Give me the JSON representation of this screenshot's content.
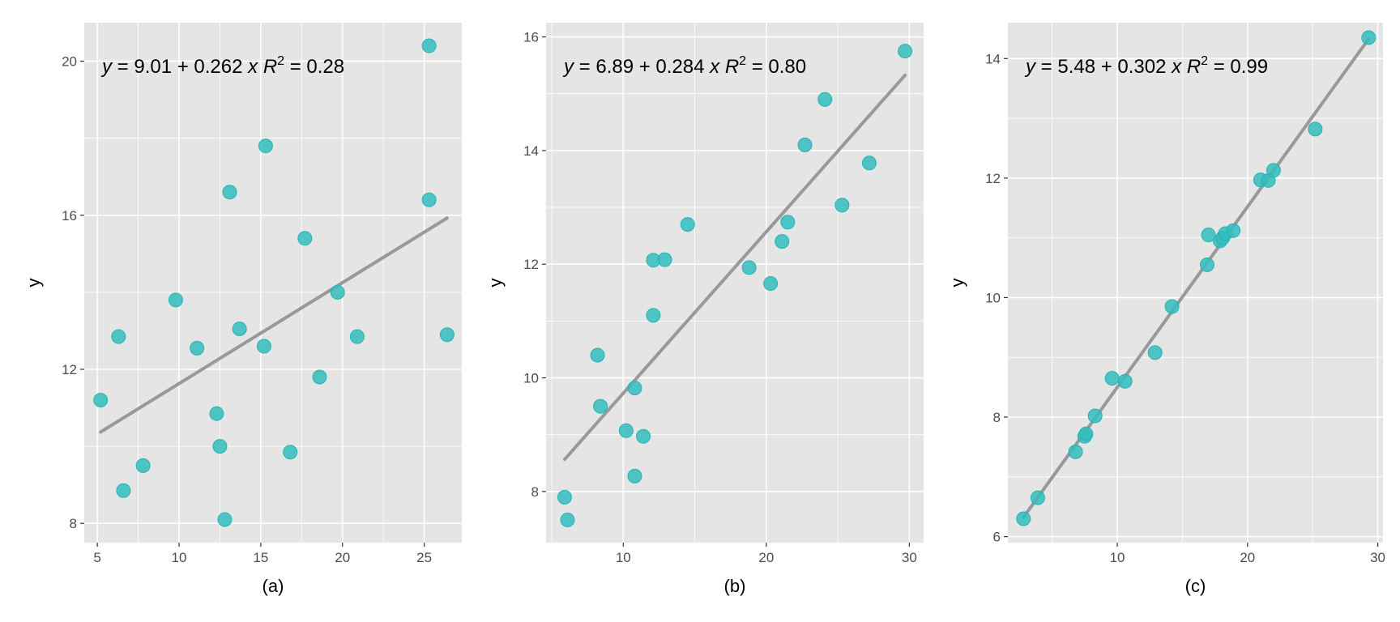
{
  "chart_data": [
    {
      "type": "scatter",
      "title": "",
      "xlabel": "(a)",
      "ylabel": "y",
      "equation": {
        "lhs": "y",
        "body": " = 9.01 + 0.262 ",
        "xvar": "x",
        "rlab": "R",
        "rexp": "2",
        "rval": " = 0.28"
      },
      "xlim": [
        4.2,
        27.3
      ],
      "ylim": [
        7.5,
        21.0
      ],
      "xticks": [
        5,
        10,
        15,
        20,
        25
      ],
      "yticks": [
        8,
        12,
        16,
        20
      ],
      "fit": {
        "intercept": 9.01,
        "slope": 0.262,
        "x_range": [
          5.2,
          26.4
        ]
      },
      "series": [
        {
          "point_color": "#33bdbd",
          "x": [
            5.2,
            6.3,
            6.6,
            7.8,
            9.8,
            11.1,
            12.3,
            12.5,
            12.8,
            13.1,
            13.7,
            15.2,
            15.3,
            16.8,
            17.7,
            18.6,
            19.7,
            20.9,
            25.3,
            25.3,
            26.4
          ],
          "y": [
            11.2,
            12.85,
            8.85,
            9.5,
            13.8,
            12.55,
            10.85,
            10.0,
            8.1,
            16.6,
            13.05,
            12.6,
            17.8,
            9.85,
            15.4,
            11.8,
            14.0,
            12.85,
            20.4,
            16.4,
            12.9
          ]
        }
      ]
    },
    {
      "type": "scatter",
      "title": "",
      "xlabel": "(b)",
      "ylabel": "y",
      "equation": {
        "lhs": "y",
        "body": " = 6.89 + 0.284 ",
        "xvar": "x",
        "rlab": "R",
        "rexp": "2",
        "rval": " = 0.80"
      },
      "xlim": [
        4.6,
        31.0
      ],
      "ylim": [
        7.1,
        16.25
      ],
      "xticks": [
        10,
        20,
        30
      ],
      "yticks": [
        8,
        10,
        12,
        14,
        16
      ],
      "fit": {
        "intercept": 6.89,
        "slope": 0.284,
        "x_range": [
          5.9,
          29.7
        ]
      },
      "series": [
        {
          "point_color": "#33bdbd",
          "x": [
            5.9,
            6.1,
            8.2,
            8.4,
            10.2,
            10.8,
            10.8,
            11.4,
            12.1,
            12.1,
            12.9,
            14.5,
            18.8,
            20.3,
            21.1,
            21.5,
            22.7,
            24.1,
            25.3,
            27.2,
            29.7
          ],
          "y": [
            7.9,
            7.5,
            10.4,
            9.5,
            9.07,
            8.27,
            9.82,
            8.97,
            11.1,
            12.07,
            12.08,
            12.7,
            11.94,
            11.66,
            12.4,
            12.74,
            14.1,
            14.9,
            13.04,
            13.78,
            15.75
          ]
        }
      ]
    },
    {
      "type": "scatter",
      "title": "",
      "xlabel": "(c)",
      "ylabel": "y",
      "equation": {
        "lhs": "y",
        "body": " = 5.48 + 0.302 ",
        "xvar": "x",
        "rlab": "R",
        "rexp": "2",
        "rval": " = 0.99"
      },
      "xlim": [
        1.6,
        30.4
      ],
      "ylim": [
        5.9,
        14.6
      ],
      "xticks": [
        10,
        20,
        30
      ],
      "yticks": [
        6,
        8,
        10,
        12,
        14
      ],
      "fit": {
        "intercept": 5.48,
        "slope": 0.302,
        "x_range": [
          2.8,
          29.3
        ]
      },
      "series": [
        {
          "point_color": "#33bdbd",
          "x": [
            2.8,
            3.9,
            6.8,
            7.5,
            7.6,
            8.3,
            9.6,
            10.6,
            12.9,
            14.2,
            16.9,
            17.0,
            17.9,
            18.1,
            18.3,
            18.9,
            21.0,
            21.6,
            22.0,
            25.2,
            29.3
          ],
          "y": [
            6.3,
            6.65,
            7.42,
            7.68,
            7.72,
            8.02,
            8.65,
            8.6,
            9.08,
            9.85,
            10.55,
            11.05,
            10.95,
            11.0,
            11.07,
            11.12,
            11.97,
            11.96,
            12.13,
            12.82,
            14.35
          ]
        }
      ]
    }
  ]
}
